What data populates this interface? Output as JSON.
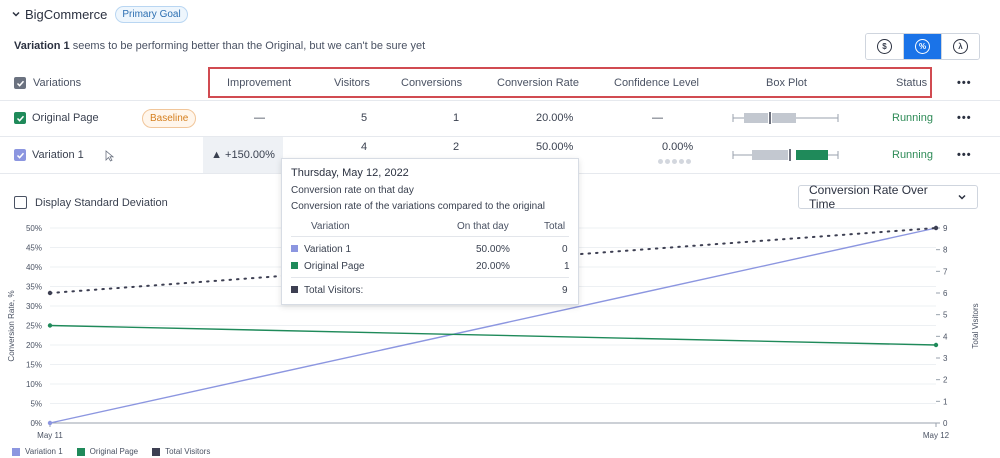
{
  "header": {
    "title": "BigCommerce",
    "goal_badge": "Primary Goal",
    "subtitle_bold": "Variation 1",
    "subtitle_rest": " seems to be performing better than the Original, but we can't be sure yet"
  },
  "modes": [
    {
      "icon": "dollar-icon",
      "symbol": "$",
      "active": false
    },
    {
      "icon": "percent-icon",
      "symbol": "%",
      "active": true
    },
    {
      "icon": "lambda-icon",
      "symbol": "λ",
      "active": false
    }
  ],
  "table": {
    "select_label": "Variations",
    "columns": {
      "improvement": "Improvement",
      "visitors": "Visitors",
      "conversions": "Conversions",
      "conversion_rate": "Conversion Rate",
      "confidence_level": "Confidence Level",
      "box_plot": "Box Plot",
      "status": "Status",
      "more": "•••"
    },
    "rows": [
      {
        "name": "Original Page",
        "badge": "Baseline",
        "improvement": "—",
        "visitors": "5",
        "conversions": "1",
        "conversion_rate": "20.00%",
        "confidence": "—",
        "status": "Running",
        "more": "•••"
      },
      {
        "name": "Variation 1",
        "improvement": "▲ +150.00%",
        "visitors": "4",
        "conversions": "2",
        "conversion_rate": "50.00%",
        "confidence": "0.00%",
        "status": "Running",
        "more": "•••"
      }
    ]
  },
  "controls": {
    "std_dev_label": "Display Standard Deviation",
    "chart_select": "Conversion Rate Over Time"
  },
  "tooltip": {
    "date": "Thursday, May 12, 2022",
    "line1": "Conversion rate on that day",
    "line2": "Conversion rate of the variations compared to the original",
    "col_variation": "Variation",
    "col_day": "On that day",
    "col_total": "Total",
    "rows": [
      {
        "name": "Variation 1",
        "day": "50.00%",
        "total": "0",
        "color": "#8c96e0"
      },
      {
        "name": "Original Page",
        "day": "20.00%",
        "total": "1",
        "color": "#1f8a5a"
      }
    ],
    "visitors_label": "Total Visitors:",
    "visitors_total": "9"
  },
  "colors": {
    "variation": "#8c96e0",
    "original": "#1f8a5a",
    "visitors": "#3d3f52",
    "accent": "#1a73e8",
    "highlight": "#d14b51"
  },
  "chart_data": {
    "type": "line",
    "x": [
      "May 11",
      "May 12"
    ],
    "ylabel": "Conversion Rate, %",
    "y2label": "Total Visitors",
    "ylim": [
      0,
      50
    ],
    "y_ticks": [
      "0%",
      "5%",
      "10%",
      "15%",
      "20%",
      "25%",
      "30%",
      "35%",
      "40%",
      "45%",
      "50%"
    ],
    "y2lim": [
      0,
      9
    ],
    "y2_ticks": [
      "0",
      "1",
      "2",
      "3",
      "4",
      "5",
      "6",
      "7",
      "8",
      "9"
    ],
    "series": [
      {
        "name": "Variation 1",
        "axis": "left",
        "values": [
          0,
          50
        ]
      },
      {
        "name": "Original Page",
        "axis": "left",
        "values": [
          25,
          20
        ]
      },
      {
        "name": "Total Visitors",
        "axis": "right",
        "values": [
          6,
          9
        ],
        "style": "dotted"
      }
    ],
    "legend": "bottom-left"
  }
}
